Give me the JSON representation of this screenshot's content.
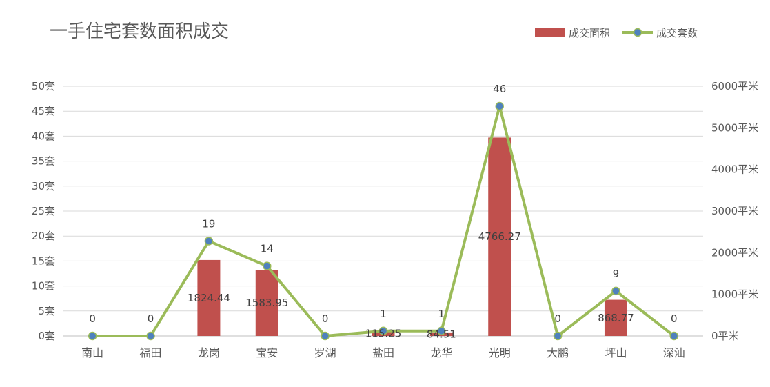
{
  "chart_data": {
    "type": "bar",
    "title": "一手住宅套数面积成交",
    "categories": [
      "南山",
      "福田",
      "龙岗",
      "宝安",
      "罗湖",
      "盐田",
      "龙华",
      "光明",
      "大鹏",
      "坪山",
      "深汕"
    ],
    "series": [
      {
        "name": "成交面积",
        "type": "bar",
        "axis": "right",
        "color": "#c0504d",
        "values": [
          0,
          0,
          1824.44,
          1583.95,
          0,
          115.25,
          84.51,
          4766.27,
          0,
          868.77,
          0
        ],
        "labels": [
          "",
          "",
          "1824.44",
          "1583.95",
          "",
          "115.25",
          "84.51",
          "4766.27",
          "",
          "868.77",
          ""
        ]
      },
      {
        "name": "成交套数",
        "type": "line",
        "axis": "left",
        "color": "#9bbb59",
        "marker_color": "#4f81bd",
        "values": [
          0,
          0,
          19,
          14,
          0,
          1,
          1,
          46,
          0,
          9,
          0
        ],
        "labels": [
          "0",
          "0",
          "19",
          "14",
          "0",
          "1",
          "1",
          "46",
          "0",
          "9",
          "0"
        ]
      }
    ],
    "y_left": {
      "ylim": [
        0,
        50
      ],
      "ticks": [
        "0套",
        "5套",
        "10套",
        "15套",
        "20套",
        "25套",
        "30套",
        "35套",
        "40套",
        "45套",
        "50套"
      ]
    },
    "y_right": {
      "ylim": [
        0,
        6000
      ],
      "ticks": [
        "0平米",
        "1000平米",
        "2000平米",
        "3000平米",
        "4000平米",
        "5000平米",
        "6000平米"
      ]
    },
    "grid": true,
    "legend": "top-right"
  }
}
